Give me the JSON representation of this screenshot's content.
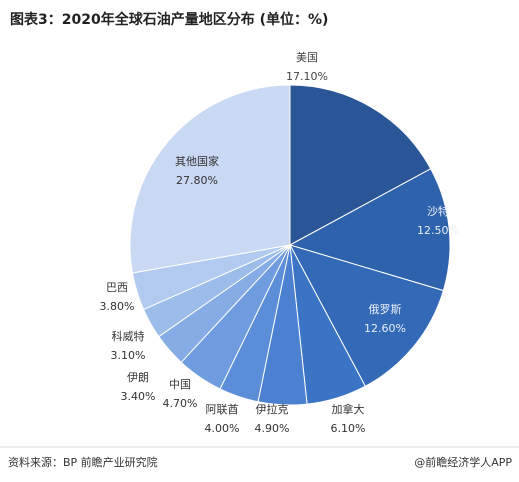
{
  "chart_data": {
    "type": "pie",
    "title": "图表3：2020年全球石油产量地区分布 (单位：%)",
    "categories": [
      "美国",
      "沙特",
      "俄罗斯",
      "加拿大",
      "伊拉克",
      "阿联酋",
      "中国",
      "伊朗",
      "科威特",
      "巴西",
      "其他国家"
    ],
    "values": [
      17.1,
      12.5,
      12.6,
      6.1,
      4.9,
      4.0,
      4.7,
      3.4,
      3.1,
      3.8,
      27.8
    ],
    "value_labels": [
      "17.10%",
      "12.50%",
      "12.60%",
      "6.10%",
      "4.90%",
      "4.00%",
      "4.70%",
      "3.40%",
      "3.10%",
      "3.80%",
      "27.80%"
    ],
    "colors": [
      "#2a5597",
      "#2f62ad",
      "#3469b8",
      "#3c74c5",
      "#4b81d0",
      "#5c8dd8",
      "#6f9bdf",
      "#86ace5",
      "#9cbcea",
      "#b2caef",
      "#c9d8f3"
    ],
    "source": "资料来源：BP 前瞻产业研究院",
    "credit": "@前瞻经济学人APP"
  }
}
